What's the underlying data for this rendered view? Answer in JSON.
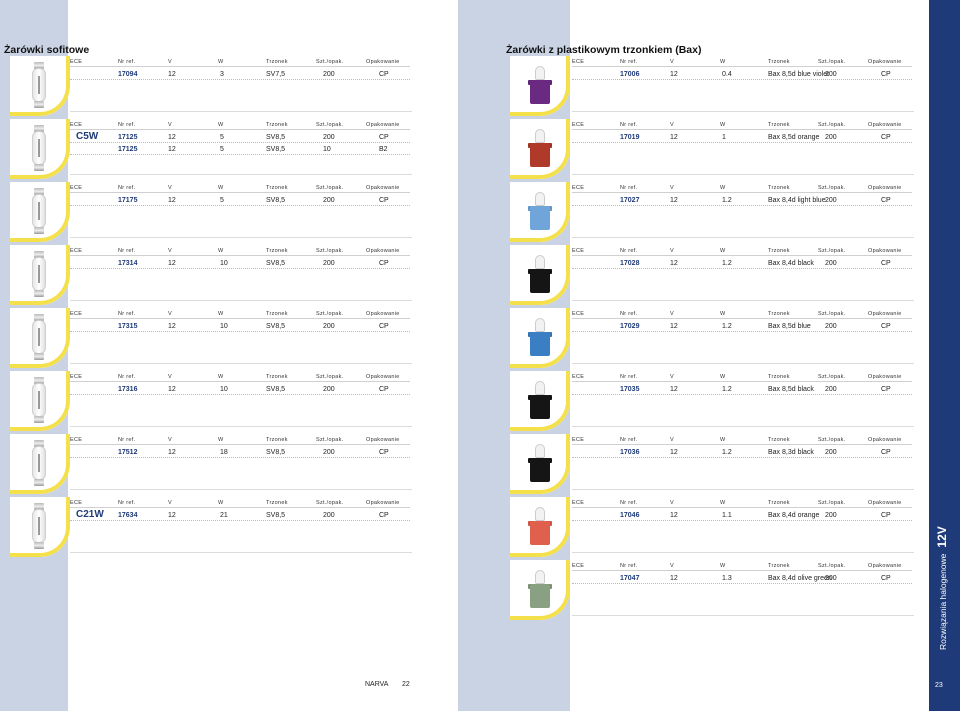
{
  "headers": [
    "ECE",
    "Nr ref.",
    "V",
    "W",
    "Trzonek",
    "Szt./opak.",
    "Opakowanie"
  ],
  "left": {
    "title": "Żarówki sofitowe",
    "rows": [
      {
        "code": "",
        "lines": [
          [
            "17094",
            "12",
            "3",
            "SV7,5",
            "200",
            "CP"
          ]
        ]
      },
      {
        "code": "C5W",
        "lines": [
          [
            "17125",
            "12",
            "5",
            "SV8,5",
            "200",
            "CP"
          ],
          [
            "17125",
            "12",
            "5",
            "SV8,5",
            "10",
            "B2"
          ]
        ]
      },
      {
        "code": "",
        "lines": [
          [
            "17175",
            "12",
            "5",
            "SV8,5",
            "200",
            "CP"
          ]
        ]
      },
      {
        "code": "",
        "lines": [
          [
            "17314",
            "12",
            "10",
            "SV8,5",
            "200",
            "CP"
          ]
        ]
      },
      {
        "code": "",
        "lines": [
          [
            "17315",
            "12",
            "10",
            "SV8,5",
            "200",
            "CP"
          ]
        ]
      },
      {
        "code": "",
        "lines": [
          [
            "17316",
            "12",
            "10",
            "SV8,5",
            "200",
            "CP"
          ]
        ]
      },
      {
        "code": "",
        "lines": [
          [
            "17512",
            "12",
            "18",
            "SV8,5",
            "200",
            "CP"
          ]
        ]
      },
      {
        "code": "C21W",
        "lines": [
          [
            "17634",
            "12",
            "21",
            "SV8,5",
            "200",
            "CP"
          ]
        ]
      }
    ],
    "footer_brand": "NARVA",
    "page_number": "22"
  },
  "right": {
    "title": "Żarówki z plastikowym trzonkiem (Bax)",
    "rows": [
      {
        "color": "#6a2a82",
        "lines": [
          [
            "17006",
            "12",
            "0.4",
            "Bax 8,5d blue violet",
            "200",
            "CP"
          ]
        ]
      },
      {
        "color": "#b03a2a",
        "lines": [
          [
            "17019",
            "12",
            "1",
            "Bax 8,5d orange",
            "200",
            "CP"
          ]
        ]
      },
      {
        "color": "#6fa5d8",
        "lines": [
          [
            "17027",
            "12",
            "1.2",
            "Bax 8,4d light blue",
            "200",
            "CP"
          ]
        ]
      },
      {
        "color": "#151515",
        "lines": [
          [
            "17028",
            "12",
            "1.2",
            "Bax 8,4d black",
            "200",
            "CP"
          ]
        ]
      },
      {
        "color": "#3a7fc4",
        "lines": [
          [
            "17029",
            "12",
            "1.2",
            "Bax 8,5d blue",
            "200",
            "CP"
          ]
        ]
      },
      {
        "color": "#151515",
        "lines": [
          [
            "17035",
            "12",
            "1.2",
            "Bax 8,5d black",
            "200",
            "CP"
          ]
        ]
      },
      {
        "color": "#151515",
        "lines": [
          [
            "17036",
            "12",
            "1.2",
            "Bax 8,3d black",
            "200",
            "CP"
          ]
        ]
      },
      {
        "color": "#e0604e",
        "lines": [
          [
            "17046",
            "12",
            "1.1",
            "Bax 8,4d orange",
            "200",
            "CP"
          ]
        ]
      },
      {
        "color": "#8aa082",
        "lines": [
          [
            "17047",
            "12",
            "1.3",
            "Bax 8,4d olive green",
            "200",
            "CP"
          ]
        ]
      }
    ],
    "side_label": "Rozwiązania halogenowe",
    "side_voltage": "12V",
    "page_number": "23"
  }
}
